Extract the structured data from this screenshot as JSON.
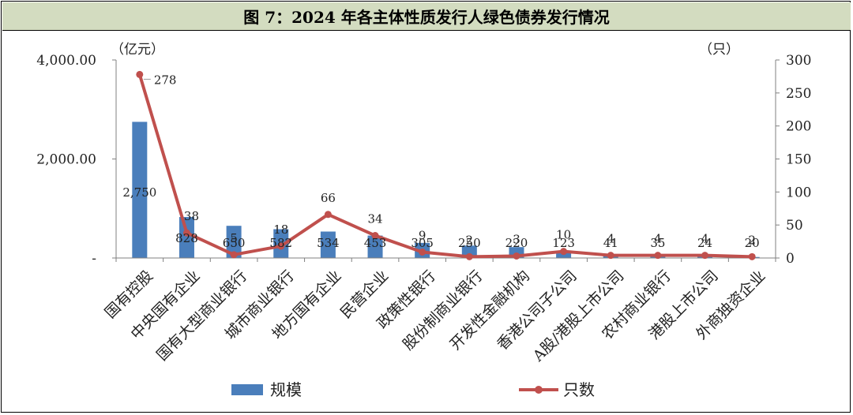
{
  "title": "图 7：2024 年各主体性质发行人绿色债券发行情况",
  "left_unit": "（亿元）",
  "right_unit": "（只）",
  "colors": {
    "bar": "#4a7ebb",
    "line": "#c0504d",
    "title_bg": "#d3dcc0"
  },
  "chart_data": {
    "type": "bar",
    "title": "图 7：2024 年各主体性质发行人绿色债券发行情况",
    "categories": [
      "国有控股",
      "中央国有企业",
      "国有大型商业银行",
      "城市商业银行",
      "地方国有企业",
      "民营企业",
      "政策性银行",
      "股份制商业银行",
      "开发性金融机构",
      "香港公司子公司",
      "A股/港股上市公司",
      "农村商业银行",
      "港股上市公司",
      "外商独资企业"
    ],
    "series": [
      {
        "name": "规模",
        "type": "bar",
        "axis": "left",
        "values": [
          2750,
          828,
          650,
          582,
          534,
          453,
          305,
          250,
          220,
          123,
          41,
          35,
          24,
          20
        ],
        "labels": [
          "2,750",
          "828",
          "650",
          "582",
          "534",
          "453",
          "305",
          "250",
          "220",
          "123",
          "41",
          "35",
          "24",
          "20"
        ]
      },
      {
        "name": "只数",
        "type": "line",
        "axis": "right",
        "values": [
          278,
          38,
          5,
          18,
          66,
          34,
          9,
          2,
          3,
          10,
          4,
          4,
          4,
          2
        ],
        "labels": [
          "278",
          "38",
          "5",
          "18",
          "66",
          "34",
          "9",
          "2",
          "3",
          "10",
          "4",
          "4",
          "4",
          "2"
        ]
      }
    ],
    "ylim_left": [
      0,
      4000
    ],
    "yticks_left": [
      "-",
      "2,000.00",
      "4,000.00"
    ],
    "ylim_right": [
      0,
      300
    ],
    "yticks_right": [
      "0",
      "50",
      "100",
      "150",
      "200",
      "250",
      "300"
    ],
    "legend_position": "bottom",
    "grid": false
  }
}
